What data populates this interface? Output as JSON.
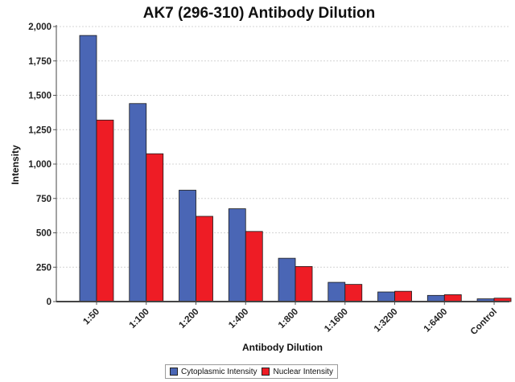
{
  "chart_data": {
    "type": "bar",
    "title": "AK7 (296-310) Antibody Dilution",
    "xlabel": "Antibody Dilution",
    "ylabel": "Intensity",
    "ylim": [
      0,
      2000
    ],
    "yticks": [
      0,
      250,
      500,
      750,
      1000,
      1250,
      1500,
      1750,
      2000
    ],
    "ytick_labels": [
      "0",
      "250",
      "500",
      "750",
      "1,000",
      "1,250",
      "1,500",
      "1,750",
      "2,000"
    ],
    "categories": [
      "1:50",
      "1:100",
      "1:200",
      "1:400",
      "1:800",
      "1:1600",
      "1:3200",
      "1:6400",
      "Control"
    ],
    "series": [
      {
        "name": "Cytoplasmic Intensity",
        "color": "#4a66b5",
        "values": [
          1935,
          1440,
          810,
          675,
          315,
          140,
          70,
          45,
          20
        ]
      },
      {
        "name": "Nuclear Intensity",
        "color": "#ee1c25",
        "values": [
          1320,
          1075,
          620,
          510,
          255,
          125,
          75,
          50,
          25
        ]
      }
    ],
    "grid": true,
    "legend_position": "bottom"
  }
}
